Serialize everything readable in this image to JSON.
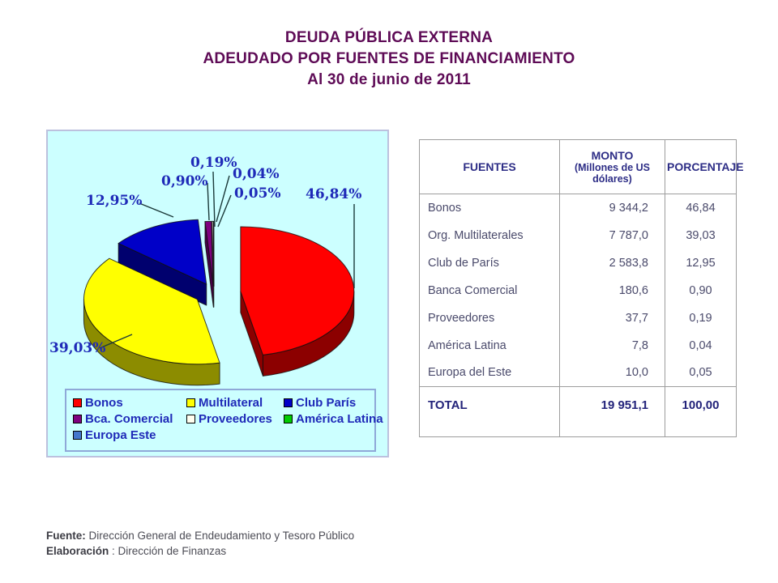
{
  "title": {
    "line1": "DEUDA PÚBLICA EXTERNA",
    "line2": "ADEUDADO POR FUENTES DE FINANCIAMIENTO",
    "line3": "Al 30 de junio de 2011",
    "color": "#5E0B56"
  },
  "chart_data": {
    "type": "pie",
    "style": "3d-exploded",
    "background": "#CCFFFF",
    "label_color": "#1f2ab8",
    "legend_position": "bottom-inside",
    "slices": [
      {
        "label": "Bonos",
        "value": 46.84,
        "display": "46,84%",
        "color": "#FF0000"
      },
      {
        "label": "Multilateral",
        "value": 39.03,
        "display": "39,03%",
        "color": "#FFFF00"
      },
      {
        "label": "Club París",
        "value": 12.95,
        "display": "12,95%",
        "color": "#0000C8"
      },
      {
        "label": "Bca. Comercial",
        "value": 0.9,
        "display": "0,90%",
        "color": "#800080"
      },
      {
        "label": "Proveedores",
        "value": 0.19,
        "display": "0,19%",
        "color": "#FFFFF0"
      },
      {
        "label": "América Latina",
        "value": 0.04,
        "display": "0,04%",
        "color": "#00CC00"
      },
      {
        "label": "Europa Este",
        "value": 0.05,
        "display": "0,05%",
        "color": "#4477CC"
      }
    ]
  },
  "table": {
    "headers": {
      "fuentes": "FUENTES",
      "monto": "MONTO",
      "monto_sub": "(Millones de US dólares)",
      "porcentaje": "PORCENTAJE"
    },
    "rows": [
      {
        "fuente": "Bonos",
        "monto": "9 344,2",
        "porcentaje": "46,84"
      },
      {
        "fuente": "Org. Multilaterales",
        "monto": "7 787,0",
        "porcentaje": "39,03"
      },
      {
        "fuente": "Club de París",
        "monto": "2 583,8",
        "porcentaje": "12,95"
      },
      {
        "fuente": "Banca Comercial",
        "monto": "180,6",
        "porcentaje": "0,90"
      },
      {
        "fuente": "Proveedores",
        "monto": "37,7",
        "porcentaje": "0,19"
      },
      {
        "fuente": "América Latina",
        "monto": "7,8",
        "porcentaje": "0,04"
      },
      {
        "fuente": "Europa del Este",
        "monto": "10,0",
        "porcentaje": "0,05"
      }
    ],
    "total": {
      "fuente": "TOTAL",
      "monto": "19 951,1",
      "porcentaje": "100,00"
    }
  },
  "footer": {
    "fuente_label": "Fuente:",
    "fuente_text": " Dirección General de Endeudamiento y Tesoro Público",
    "elaboracion_label": "Elaboración",
    "elaboracion_text": " : Dirección de Finanzas"
  }
}
